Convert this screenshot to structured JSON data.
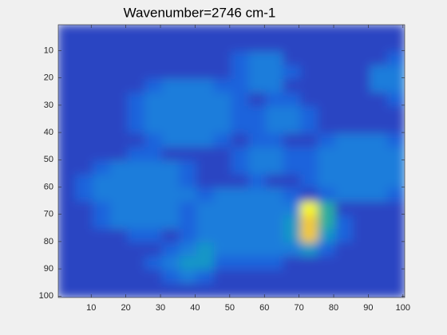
{
  "chart_data": {
    "type": "heatmap",
    "title": "Wavenumber=2746 cm-1",
    "xlim": [
      0.5,
      100.5
    ],
    "ylim": [
      0.5,
      100.5
    ],
    "y_reversed": true,
    "xticks": [
      10,
      20,
      30,
      40,
      50,
      60,
      70,
      80,
      90,
      100
    ],
    "yticks": [
      10,
      20,
      30,
      40,
      50,
      60,
      70,
      80,
      90,
      100
    ],
    "zlim": [
      0,
      9
    ],
    "colormap": [
      "#352a87",
      "#2b44c2",
      "#1f64dc",
      "#1d7ddb",
      "#1497c6",
      "#2bae9d",
      "#6bbc72",
      "#c2b948",
      "#f2c836",
      "#f9fb0e"
    ],
    "z": [
      [
        1,
        1,
        1,
        1,
        1,
        1,
        1,
        1,
        1,
        1,
        1,
        1,
        1,
        1,
        1,
        1,
        1,
        1,
        1,
        1
      ],
      [
        1,
        1,
        1,
        1,
        1,
        1,
        1,
        1,
        1,
        1,
        1,
        1,
        1,
        1,
        1,
        1,
        1,
        1,
        1,
        1
      ],
      [
        1,
        1,
        1,
        1,
        1,
        1,
        1,
        1,
        1,
        1,
        2,
        3,
        3,
        1,
        1,
        1,
        1,
        1,
        1,
        2
      ],
      [
        1,
        1,
        1,
        1,
        1,
        1,
        1,
        1,
        1,
        1,
        2,
        3,
        3,
        2,
        1,
        1,
        1,
        1,
        3,
        3
      ],
      [
        1,
        1,
        1,
        1,
        1,
        2,
        3,
        3,
        3,
        2,
        2,
        3,
        3,
        1,
        1,
        1,
        1,
        1,
        3,
        3
      ],
      [
        1,
        1,
        1,
        1,
        2,
        3,
        3,
        3,
        3,
        3,
        2,
        1,
        2,
        2,
        1,
        1,
        1,
        1,
        1,
        2
      ],
      [
        1,
        1,
        1,
        1,
        2,
        3,
        3,
        3,
        3,
        3,
        2,
        2,
        3,
        3,
        2,
        1,
        1,
        1,
        1,
        1
      ],
      [
        1,
        1,
        1,
        1,
        2,
        3,
        3,
        3,
        3,
        3,
        2,
        2,
        3,
        3,
        2,
        1,
        1,
        1,
        1,
        1
      ],
      [
        1,
        1,
        1,
        1,
        1,
        2,
        3,
        3,
        3,
        2,
        1,
        2,
        2,
        1,
        1,
        2,
        3,
        3,
        3,
        2
      ],
      [
        1,
        1,
        1,
        1,
        2,
        2,
        1,
        1,
        1,
        1,
        2,
        3,
        3,
        2,
        2,
        3,
        3,
        3,
        3,
        3
      ],
      [
        1,
        1,
        2,
        3,
        3,
        3,
        3,
        2,
        1,
        1,
        2,
        3,
        3,
        2,
        2,
        3,
        3,
        3,
        3,
        3
      ],
      [
        1,
        2,
        3,
        3,
        3,
        3,
        3,
        2,
        1,
        1,
        1,
        2,
        1,
        1,
        2,
        3,
        3,
        3,
        3,
        3
      ],
      [
        1,
        2,
        3,
        3,
        3,
        3,
        3,
        3,
        2,
        3,
        3,
        3,
        3,
        2,
        1,
        2,
        3,
        3,
        3,
        2
      ],
      [
        1,
        1,
        2,
        3,
        3,
        3,
        3,
        2,
        3,
        3,
        3,
        3,
        3,
        3,
        9,
        5,
        1,
        1,
        1,
        1
      ],
      [
        1,
        1,
        2,
        3,
        3,
        3,
        3,
        2,
        3,
        3,
        3,
        3,
        3,
        4,
        8,
        5,
        2,
        1,
        1,
        1
      ],
      [
        1,
        1,
        1,
        1,
        2,
        2,
        1,
        2,
        3,
        3,
        3,
        3,
        3,
        4,
        8,
        4,
        2,
        1,
        1,
        1
      ],
      [
        1,
        1,
        1,
        1,
        1,
        1,
        2,
        3,
        4,
        3,
        3,
        3,
        3,
        3,
        4,
        2,
        1,
        1,
        1,
        1
      ],
      [
        1,
        1,
        1,
        1,
        1,
        2,
        3,
        4,
        4,
        2,
        2,
        2,
        2,
        1,
        1,
        1,
        1,
        1,
        1,
        1
      ],
      [
        1,
        1,
        1,
        1,
        1,
        1,
        2,
        3,
        2,
        1,
        1,
        1,
        1,
        1,
        1,
        1,
        1,
        1,
        1,
        1
      ],
      [
        1,
        1,
        1,
        1,
        1,
        1,
        1,
        1,
        1,
        1,
        1,
        1,
        1,
        1,
        1,
        1,
        1,
        1,
        1,
        1
      ]
    ]
  }
}
